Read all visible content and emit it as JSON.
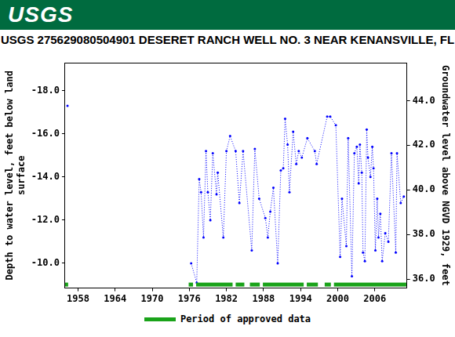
{
  "chart_data": {
    "type": "line",
    "logo": "USGS",
    "title": "USGS 275629080504901 DESERET RANCH WELL NO. 3 NEAR KENANSVILLE, FL",
    "ylabel": [
      "Depth to water level, feet below land",
      "surface"
    ],
    "y2label": "Groundwater level above NGVD 1929, feet",
    "x": [
      1956.3,
      1966.0,
      1976.3,
      1977.2,
      1977.6,
      1977.9,
      1978.3,
      1978.7,
      1979.0,
      1979.4,
      1979.8,
      1980.4,
      1980.6,
      1981.5,
      1982.0,
      1982.6,
      1983.5,
      1984.1,
      1984.7,
      1986.1,
      1986.6,
      1987.3,
      1988.3,
      1988.7,
      1989.1,
      1989.6,
      1990.3,
      1990.8,
      1991.2,
      1991.5,
      1991.9,
      1992.2,
      1992.8,
      1993.3,
      1993.7,
      1994.2,
      1995.1,
      1996.3,
      1996.6,
      1998.3,
      1998.8,
      1999.7,
      2000.4,
      2000.7,
      2001.4,
      2001.7,
      2002.3,
      2002.7,
      2003.1,
      2003.4,
      2003.6,
      2003.9,
      2004.1,
      2004.4,
      2004.7,
      2004.9,
      2005.3,
      2005.6,
      2005.8,
      2006.1,
      2006.4,
      2006.6,
      2006.9,
      2007.2,
      2007.7,
      2008.2,
      2008.7,
      2009.4,
      2009.6,
      2010.2,
      2010.7
    ],
    "series": [
      {
        "color": "#0000ff",
        "line_style": "dotted",
        "marker": "circle",
        "axis": "y",
        "values": [
          -17.3,
          null,
          -10.0,
          -9.1,
          -13.9,
          -13.3,
          -11.2,
          -15.2,
          -13.3,
          -12.0,
          -15.1,
          -13.2,
          -14.2,
          -11.2,
          -15.2,
          -15.9,
          -15.2,
          -12.8,
          -15.2,
          -10.6,
          -15.3,
          -13.0,
          -12.1,
          -11.2,
          -12.4,
          -13.5,
          -10.0,
          -14.3,
          -14.4,
          -16.7,
          -15.5,
          -13.3,
          -16.1,
          -14.6,
          -15.2,
          -14.9,
          -15.8,
          -15.2,
          -14.6,
          -16.8,
          -16.8,
          -16.4,
          -10.3,
          -13.0,
          -10.8,
          -15.8,
          -9.4,
          -15.1,
          -15.4,
          -13.7,
          -15.5,
          -14.2,
          -10.5,
          -10.1,
          -16.2,
          -14.9,
          -14.0,
          -15.4,
          -14.4,
          -10.6,
          -13.0,
          -11.2,
          -12.3,
          -10.1,
          -11.4,
          -11.0,
          -15.1,
          -10.5,
          -15.1,
          -12.8,
          -13.1
        ]
      }
    ],
    "approved": {
      "name": "Period of approved data",
      "color": "#1aa31a",
      "periods": [
        [
          1955.9,
          1956.4
        ],
        [
          1975.9,
          1976.6
        ],
        [
          1977.1,
          1983.0
        ],
        [
          1983.5,
          1984.9
        ],
        [
          1985.8,
          1987.4
        ],
        [
          1987.9,
          1994.5
        ],
        [
          1995.0,
          1996.8
        ],
        [
          1997.9,
          1998.9
        ],
        [
          1999.4,
          2011.1
        ]
      ]
    },
    "xlim": [
      1955.9,
      2011.2
    ],
    "xticks": [
      1958,
      1964,
      1970,
      1976,
      1982,
      1988,
      1994,
      2000,
      2006
    ],
    "ylim": [
      -19.3,
      -8.85
    ],
    "yticks": [
      {
        "value": -18,
        "label": "-18.0"
      },
      {
        "value": -16,
        "label": "-16.0"
      },
      {
        "value": -14,
        "label": "-14.0"
      },
      {
        "value": -12,
        "label": "-12.0"
      },
      {
        "value": -10,
        "label": "-10.0"
      }
    ],
    "y2lim": [
      35.6,
      45.7
    ],
    "y2ticks": [
      {
        "value": 36,
        "label": "36.0"
      },
      {
        "value": 38,
        "label": "38.0"
      },
      {
        "value": 40,
        "label": "40.0"
      },
      {
        "value": 42,
        "label": "42.0"
      },
      {
        "value": 44,
        "label": "44.0"
      }
    ],
    "grid": false
  }
}
